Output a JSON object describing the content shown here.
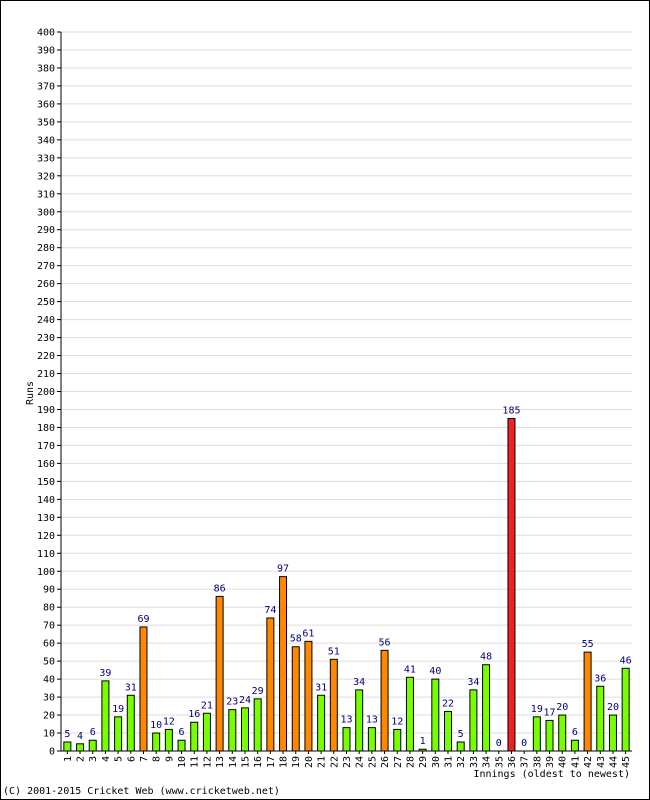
{
  "chart_data": {
    "type": "bar",
    "xlabel": "Innings (oldest to newest)",
    "ylabel": "Runs",
    "ylim": [
      0,
      400
    ],
    "ytick_step": 10,
    "grid": true,
    "categories": [
      "1",
      "2",
      "3",
      "4",
      "5",
      "6",
      "7",
      "8",
      "9",
      "10",
      "11",
      "12",
      "13",
      "14",
      "15",
      "16",
      "17",
      "18",
      "19",
      "20",
      "21",
      "22",
      "23",
      "24",
      "25",
      "26",
      "27",
      "28",
      "29",
      "30",
      "31",
      "32",
      "33",
      "34",
      "35",
      "36",
      "37",
      "38",
      "39",
      "40",
      "41",
      "42",
      "43",
      "44",
      "45"
    ],
    "values": [
      5,
      4,
      6,
      39,
      19,
      31,
      69,
      10,
      12,
      6,
      16,
      21,
      86,
      23,
      24,
      29,
      74,
      97,
      58,
      61,
      31,
      51,
      13,
      34,
      13,
      56,
      12,
      41,
      1,
      40,
      22,
      5,
      34,
      48,
      0,
      185,
      0,
      19,
      17,
      20,
      6,
      55,
      36,
      20,
      46
    ],
    "value_labels": [
      "5",
      "4",
      "6",
      "39",
      "19",
      "31",
      "69",
      "10",
      "12",
      "6",
      "16",
      "21",
      "86",
      "23",
      "24",
      "29",
      "74",
      "97",
      "58",
      "61",
      "31",
      "51",
      "13",
      "34",
      "13",
      "56",
      "12",
      "41",
      "1",
      "40",
      "22",
      "5",
      "34",
      "48",
      "0",
      "185",
      "0",
      "19",
      "17",
      "20",
      "6",
      "55",
      "36",
      "20",
      "46"
    ],
    "bar_colors": {
      "under_50": "#77ff00",
      "fifty": "#ff8800",
      "hundred": "#ee2222",
      "zero": "#ffffff"
    },
    "label_color": "#000077"
  },
  "footer": {
    "copyright": "(C) 2001-2015 Cricket Web (www.cricketweb.net)"
  }
}
